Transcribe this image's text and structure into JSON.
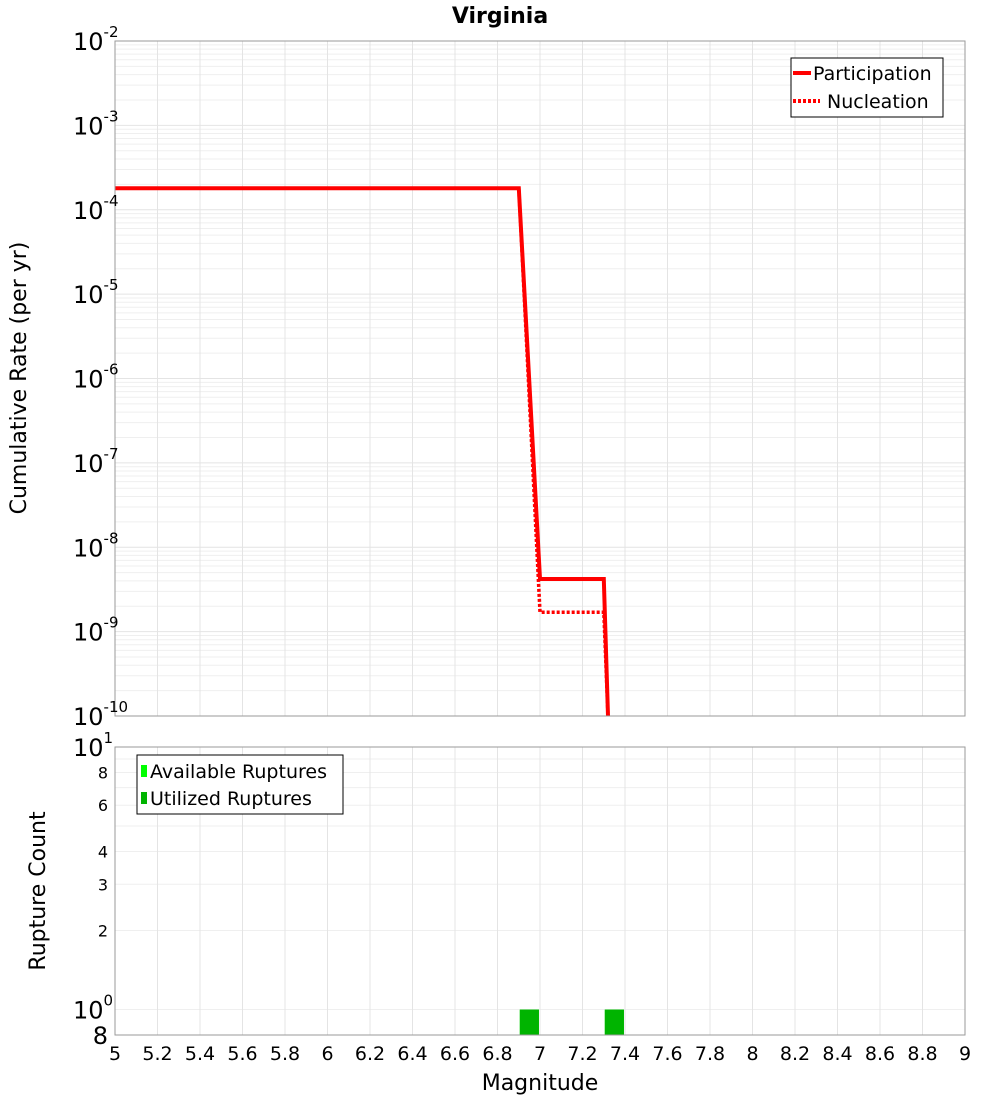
{
  "chart_data": [
    {
      "type": "line",
      "title": "Virginia",
      "xlabel": "",
      "ylabel": "Cumulative Rate (per yr)",
      "xlim": [
        5,
        9
      ],
      "ylim": [
        1e-10,
        0.01
      ],
      "yscale": "log",
      "y_tick_exponents": [
        "-2",
        "-3",
        "-4",
        "-5",
        "-6",
        "-7",
        "-8",
        "-9",
        "-10"
      ],
      "y_tick_base": "10",
      "grid": true,
      "legend_position": "top-right",
      "series": [
        {
          "name": "Participation",
          "style": "solid",
          "color": "#ff0000",
          "x": [
            5.0,
            6.9,
            7.0,
            7.3,
            7.32
          ],
          "y": [
            0.00018,
            0.00018,
            4.2e-09,
            4.2e-09,
            1e-10
          ]
        },
        {
          "name": "Nucleation",
          "style": "dotted",
          "color": "#ff0000",
          "x": [
            5.0,
            6.9,
            7.0,
            7.3,
            7.32
          ],
          "y": [
            0.00018,
            0.00018,
            1.7e-09,
            1.7e-09,
            1e-10
          ]
        }
      ]
    },
    {
      "type": "bar",
      "title": "",
      "xlabel": "Magnitude",
      "ylabel": "Rupture Count",
      "xlim": [
        5,
        9
      ],
      "ylim": [
        0.8,
        10
      ],
      "yscale": "log",
      "x_ticks": [
        "5",
        "5.2",
        "5.4",
        "5.6",
        "5.8",
        "6",
        "6.2",
        "6.4",
        "6.6",
        "6.8",
        "7",
        "7.2",
        "7.4",
        "7.6",
        "7.8",
        "8",
        "8.2",
        "8.4",
        "8.6",
        "8.8",
        "9"
      ],
      "y_ticks_small": [
        {
          "value": 8,
          "label": "8"
        },
        {
          "value": 6,
          "label": "6"
        },
        {
          "value": 4,
          "label": "4"
        },
        {
          "value": 3,
          "label": "3"
        },
        {
          "value": 2,
          "label": "2"
        }
      ],
      "y_ticks_major": [
        {
          "value": 10,
          "base": "10",
          "exp": "1"
        },
        {
          "value": 1,
          "base": "10",
          "exp": "0"
        }
      ],
      "y_tick_bottom": {
        "value": 0.8,
        "label": "8"
      },
      "grid": true,
      "legend_position": "top-left",
      "bar_width": 0.09,
      "series": [
        {
          "name": "Available Ruptures",
          "color": "#00ff00",
          "x": [
            6.95,
            7.35
          ],
          "values": [
            1,
            1
          ]
        },
        {
          "name": "Utilized Ruptures",
          "color": "#00b400",
          "x": [
            6.95,
            7.35
          ],
          "values": [
            1,
            1
          ]
        }
      ]
    }
  ]
}
